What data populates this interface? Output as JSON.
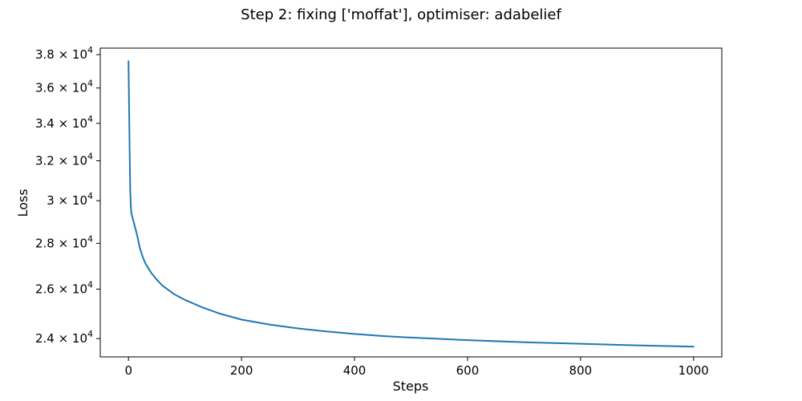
{
  "chart_data": {
    "type": "line",
    "title": "Step 2: fixing ['moffat'], optimiser: adabelief",
    "xlabel": "Steps",
    "ylabel": "Loss",
    "y_scale": "log",
    "xlim": [
      -50,
      1050
    ],
    "ylim": [
      23300,
      38400
    ],
    "grid": false,
    "x_ticks": [
      {
        "value": 0,
        "label": "0"
      },
      {
        "value": 200,
        "label": "200"
      },
      {
        "value": 400,
        "label": "400"
      },
      {
        "value": 600,
        "label": "600"
      },
      {
        "value": 800,
        "label": "800"
      },
      {
        "value": 1000,
        "label": "1000"
      }
    ],
    "y_ticks": [
      {
        "value": 24000,
        "mantissa": "2.4",
        "base": "10",
        "exp": "4"
      },
      {
        "value": 26000,
        "mantissa": "2.6",
        "base": "10",
        "exp": "4"
      },
      {
        "value": 28000,
        "mantissa": "2.8",
        "base": "10",
        "exp": "4"
      },
      {
        "value": 30000,
        "mantissa": "3",
        "base": "10",
        "exp": "4"
      },
      {
        "value": 32000,
        "mantissa": "3.2",
        "base": "10",
        "exp": "4"
      },
      {
        "value": 34000,
        "mantissa": "3.4",
        "base": "10",
        "exp": "4"
      },
      {
        "value": 36000,
        "mantissa": "3.6",
        "base": "10",
        "exp": "4"
      },
      {
        "value": 38000,
        "mantissa": "3.8",
        "base": "10",
        "exp": "4"
      }
    ],
    "series": [
      {
        "name": "loss",
        "color": "#1f77b4",
        "x": [
          0,
          1,
          2,
          3,
          4,
          5,
          7,
          10,
          15,
          20,
          25,
          30,
          40,
          50,
          60,
          80,
          100,
          130,
          160,
          200,
          250,
          300,
          350,
          400,
          450,
          500,
          600,
          700,
          800,
          900,
          1000
        ],
        "y": [
          37600,
          35000,
          32500,
          30600,
          29800,
          29400,
          29200,
          28900,
          28400,
          27800,
          27400,
          27100,
          26700,
          26400,
          26150,
          25800,
          25550,
          25250,
          25000,
          24750,
          24550,
          24400,
          24280,
          24180,
          24100,
          24040,
          23940,
          23860,
          23800,
          23740,
          23690
        ]
      }
    ]
  }
}
